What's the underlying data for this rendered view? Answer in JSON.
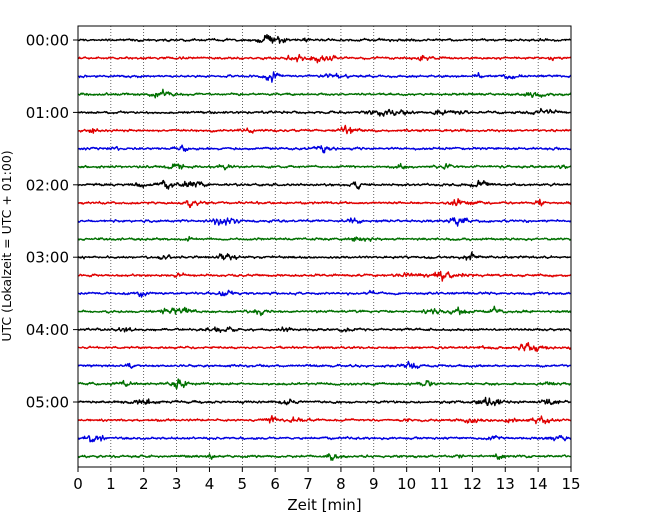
{
  "chart_data": {
    "type": "line",
    "title": "",
    "xlabel": "Zeit  [min]",
    "ylabel": "UTC (Lokalzeit = UTC + 01:00)",
    "xlim": [
      0,
      15
    ],
    "x_ticks": [
      0,
      1,
      2,
      3,
      4,
      5,
      6,
      7,
      8,
      9,
      10,
      11,
      12,
      13,
      14,
      15
    ],
    "x_tick_labels": [
      "0",
      "1",
      "2",
      "3",
      "4",
      "5",
      "6",
      "7",
      "8",
      "9",
      "10",
      "11",
      "12",
      "13",
      "14",
      "15"
    ],
    "y_tick_labels": [
      "00:00",
      "01:00",
      "02:00",
      "03:00",
      "04:00",
      "05:00"
    ],
    "grid": "vertical dotted at each minute",
    "legend": "none",
    "trace_interval_minutes": 15,
    "trace_color_cycle": [
      "#000000",
      "#e00000",
      "#0000e0",
      "#007000"
    ],
    "traces": [
      {
        "start": "00:00",
        "color": "#000000"
      },
      {
        "start": "00:15",
        "color": "#e00000"
      },
      {
        "start": "00:30",
        "color": "#0000e0"
      },
      {
        "start": "00:45",
        "color": "#007000"
      },
      {
        "start": "01:00",
        "color": "#000000"
      },
      {
        "start": "01:15",
        "color": "#e00000"
      },
      {
        "start": "01:30",
        "color": "#0000e0"
      },
      {
        "start": "01:45",
        "color": "#007000"
      },
      {
        "start": "02:00",
        "color": "#000000"
      },
      {
        "start": "02:15",
        "color": "#e00000"
      },
      {
        "start": "02:30",
        "color": "#0000e0"
      },
      {
        "start": "02:45",
        "color": "#007000"
      },
      {
        "start": "03:00",
        "color": "#000000"
      },
      {
        "start": "03:15",
        "color": "#e00000"
      },
      {
        "start": "03:30",
        "color": "#0000e0"
      },
      {
        "start": "03:45",
        "color": "#007000"
      },
      {
        "start": "04:00",
        "color": "#000000"
      },
      {
        "start": "04:15",
        "color": "#e00000"
      },
      {
        "start": "04:30",
        "color": "#0000e0"
      },
      {
        "start": "04:45",
        "color": "#007000"
      },
      {
        "start": "05:00",
        "color": "#000000"
      },
      {
        "start": "05:15",
        "color": "#e00000"
      },
      {
        "start": "05:30",
        "color": "#0000e0"
      },
      {
        "start": "05:45",
        "color": "#007000"
      }
    ]
  }
}
